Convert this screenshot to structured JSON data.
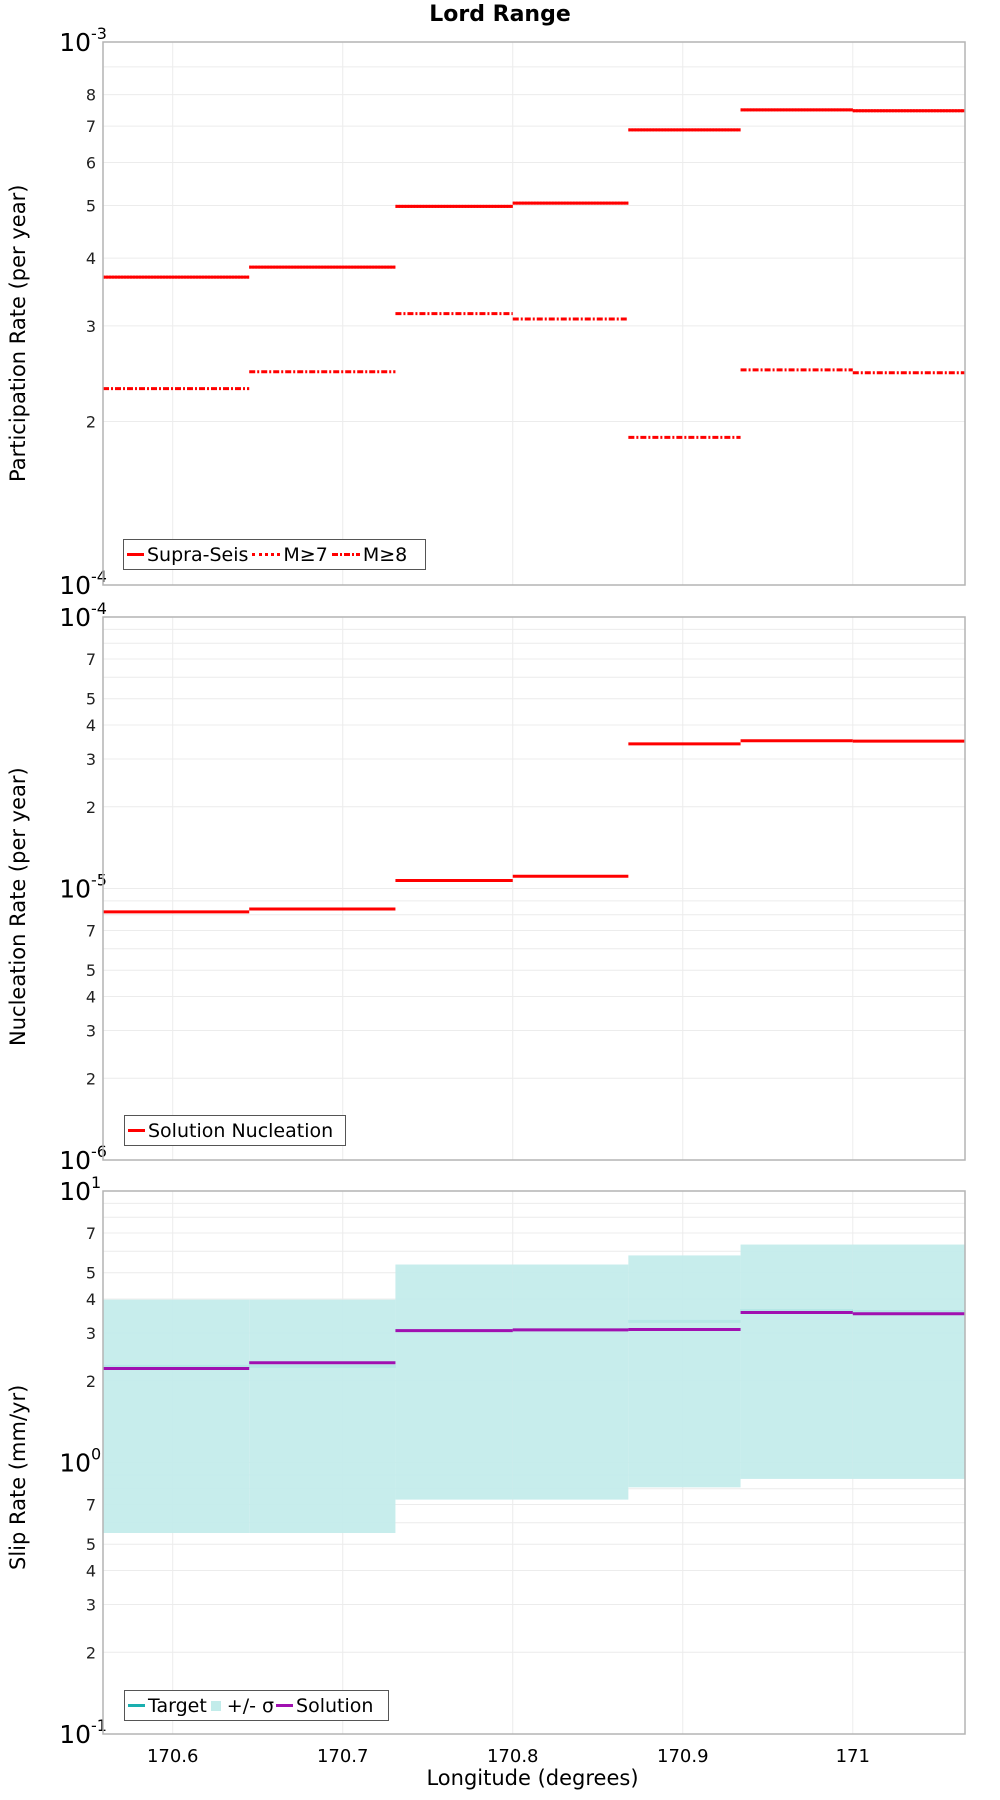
{
  "title": "Lord Range",
  "xlabel": "Longitude (degrees)",
  "chart_data": [
    {
      "type": "line",
      "step": true,
      "title": "Lord Range",
      "xlabel": "Longitude (degrees)",
      "ylabel": "Participation Rate (per year)",
      "yscale": "log",
      "ylim": [
        0.0001,
        0.001
      ],
      "xlim": [
        170.559,
        171.066
      ],
      "x_edges": [
        170.559,
        170.645,
        170.731,
        170.8,
        170.868,
        170.934,
        171.0,
        171.066
      ],
      "legend": [
        "Supra-Seis",
        "M≥7",
        "M≥8"
      ],
      "legend_position": "lower left",
      "series": [
        {
          "name": "Supra-Seis",
          "style": "solid",
          "color": "#ff0000",
          "values": [
            0.000369,
            0.000385,
            0.000498,
            0.000505,
            0.000689,
            0.00075,
            0.000747
          ]
        },
        {
          "name": "M≥7",
          "style": "dotted",
          "color": "#ff0000",
          "values": [
            0.000369,
            0.000385,
            0.000498,
            0.000505,
            0.000689,
            0.00075,
            0.000747
          ]
        },
        {
          "name": "M≥8",
          "style": "dashdot",
          "color": "#ff0000",
          "values": [
            0.00023,
            0.000247,
            0.000316,
            0.000309,
            0.000187,
            0.000249,
            0.000246
          ]
        }
      ],
      "ytick_labels": [
        "10^-3",
        "8",
        "7",
        "6",
        "5",
        "4",
        "3",
        "2",
        "10^-4"
      ],
      "grid": true
    },
    {
      "type": "line",
      "step": true,
      "ylabel": "Nucleation Rate (per year)",
      "yscale": "log",
      "ylim": [
        1e-06,
        0.0001
      ],
      "xlim": [
        170.559,
        171.066
      ],
      "x_edges": [
        170.559,
        170.645,
        170.731,
        170.8,
        170.868,
        170.934,
        171.0,
        171.066
      ],
      "legend": [
        "Solution Nucleation"
      ],
      "legend_position": "lower left",
      "series": [
        {
          "name": "Solution Nucleation",
          "style": "solid",
          "color": "#ff0000",
          "values": [
            8.2e-06,
            8.4e-06,
            1.07e-05,
            1.11e-05,
            3.41e-05,
            3.5e-05,
            3.49e-05
          ]
        }
      ],
      "ytick_labels": [
        "10^-4",
        "7",
        "5",
        "4",
        "3",
        "2",
        "10^-5",
        "7",
        "5",
        "4",
        "3",
        "2",
        "10^-6"
      ],
      "grid": true
    },
    {
      "type": "line",
      "step": true,
      "ylabel": "Slip Rate (mm/yr)",
      "xlabel": "Longitude (degrees)",
      "yscale": "log",
      "ylim": [
        0.1,
        10
      ],
      "xlim": [
        170.559,
        171.066
      ],
      "x_edges": [
        170.559,
        170.645,
        170.731,
        170.8,
        170.868,
        170.934,
        171.0,
        171.066
      ],
      "xticks": [
        170.6,
        170.7,
        170.8,
        170.9,
        171
      ],
      "xtick_labels": [
        "170.6",
        "170.7",
        "170.8",
        "170.9",
        "171"
      ],
      "legend": [
        "Target",
        "+/- σ",
        "Solution"
      ],
      "legend_position": "lower left",
      "series": [
        {
          "name": "Target",
          "style": "solid",
          "color": "#1aafaf",
          "values": [
            2.26,
            2.26,
            3.06,
            3.08,
            3.31,
            3.63,
            3.6
          ]
        },
        {
          "name": "+/- σ",
          "style": "band",
          "color": "#c2ecea",
          "lower": [
            0.55,
            0.55,
            0.73,
            0.73,
            0.81,
            0.87,
            0.87
          ],
          "upper": [
            3.98,
            3.98,
            5.36,
            5.36,
            5.79,
            6.35,
            6.35
          ]
        },
        {
          "name": "Solution",
          "style": "solid",
          "color": "#a010b0",
          "values": [
            2.22,
            2.33,
            3.06,
            3.08,
            3.09,
            3.57,
            3.53
          ]
        }
      ],
      "ytick_labels": [
        "10^1",
        "7",
        "5",
        "4",
        "3",
        "2",
        "10^0",
        "7",
        "5",
        "4",
        "3",
        "2",
        "10^-1"
      ],
      "grid": true
    }
  ],
  "panels": [
    {
      "ylabel": "Participation Rate (per year)",
      "legend": [
        {
          "label": "Supra-Seis"
        },
        {
          "label": "M≥7"
        },
        {
          "label": "M≥8"
        }
      ]
    },
    {
      "ylabel": "Nucleation Rate (per year)",
      "legend": [
        {
          "label": "Solution Nucleation"
        }
      ]
    },
    {
      "ylabel": "Slip Rate (mm/yr)",
      "legend": [
        {
          "label": "Target"
        },
        {
          "label": "+/- σ"
        },
        {
          "label": "Solution"
        }
      ]
    }
  ]
}
